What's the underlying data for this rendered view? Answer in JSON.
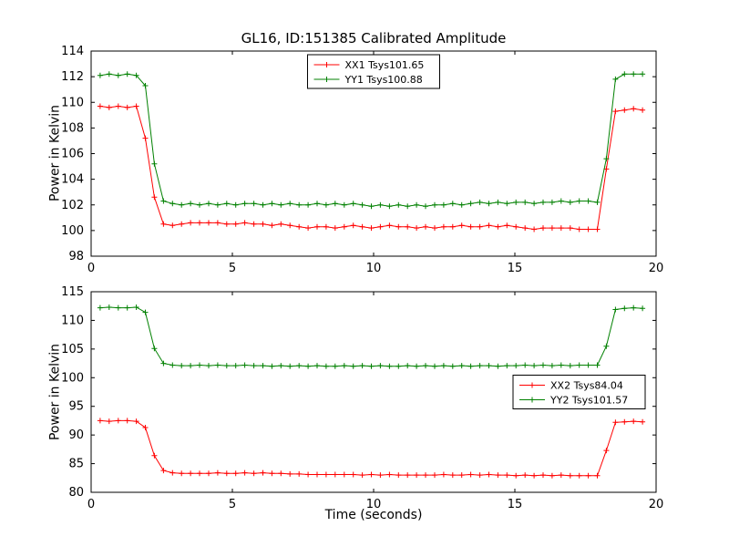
{
  "figure": {
    "title": "GL16, ID:151385 Calibrated Amplitude",
    "xlabel": "Time (seconds)",
    "ylabel": "Power in Kelvin",
    "background": "#ffffff",
    "axis_color": "#000000"
  },
  "chart_data": [
    {
      "type": "line",
      "title": "GL16, ID:151385 Calibrated Amplitude",
      "xlabel": "",
      "ylabel": "Power in Kelvin",
      "xlim": [
        0,
        20
      ],
      "ylim": [
        98,
        114
      ],
      "xticks": [
        0,
        5,
        10,
        15,
        20
      ],
      "yticks": [
        98,
        100,
        102,
        104,
        106,
        108,
        110,
        112,
        114
      ],
      "grid": false,
      "legend_position": "upper center",
      "marker": "plus",
      "x": [
        0.32,
        0.64,
        0.96,
        1.28,
        1.6,
        1.92,
        2.24,
        2.56,
        2.88,
        3.2,
        3.52,
        3.84,
        4.16,
        4.48,
        4.8,
        5.12,
        5.44,
        5.76,
        6.08,
        6.4,
        6.72,
        7.04,
        7.36,
        7.68,
        8.0,
        8.32,
        8.64,
        8.96,
        9.28,
        9.6,
        9.92,
        10.24,
        10.56,
        10.88,
        11.2,
        11.52,
        11.84,
        12.16,
        12.48,
        12.8,
        13.12,
        13.44,
        13.76,
        14.08,
        14.4,
        14.72,
        15.04,
        15.36,
        15.68,
        16.0,
        16.32,
        16.64,
        16.96,
        17.28,
        17.6,
        17.92,
        18.24,
        18.56,
        18.88,
        19.2,
        19.52
      ],
      "series": [
        {
          "name": "XX1 Tsys101.65",
          "color": "#ff0000",
          "values": [
            109.7,
            109.6,
            109.7,
            109.6,
            109.7,
            107.2,
            102.6,
            100.5,
            100.4,
            100.5,
            100.6,
            100.6,
            100.6,
            100.6,
            100.5,
            100.5,
            100.6,
            100.5,
            100.5,
            100.4,
            100.5,
            100.4,
            100.3,
            100.2,
            100.3,
            100.3,
            100.2,
            100.3,
            100.4,
            100.3,
            100.2,
            100.3,
            100.4,
            100.3,
            100.3,
            100.2,
            100.3,
            100.2,
            100.3,
            100.3,
            100.4,
            100.3,
            100.3,
            100.4,
            100.3,
            100.4,
            100.3,
            100.2,
            100.1,
            100.2,
            100.2,
            100.2,
            100.2,
            100.1,
            100.1,
            100.1,
            104.8,
            109.3,
            109.4,
            109.5,
            109.4
          ]
        },
        {
          "name": "YY1 Tsys100.88",
          "color": "#008000",
          "values": [
            112.1,
            112.2,
            112.1,
            112.2,
            112.1,
            111.3,
            105.2,
            102.3,
            102.1,
            102.0,
            102.1,
            102.0,
            102.1,
            102.0,
            102.1,
            102.0,
            102.1,
            102.1,
            102.0,
            102.1,
            102.0,
            102.1,
            102.0,
            102.0,
            102.1,
            102.0,
            102.1,
            102.0,
            102.1,
            102.0,
            101.9,
            102.0,
            101.9,
            102.0,
            101.9,
            102.0,
            101.9,
            102.0,
            102.0,
            102.1,
            102.0,
            102.1,
            102.2,
            102.1,
            102.2,
            102.1,
            102.2,
            102.2,
            102.1,
            102.2,
            102.2,
            102.3,
            102.2,
            102.3,
            102.3,
            102.2,
            105.6,
            111.8,
            112.2,
            112.2,
            112.2
          ]
        }
      ]
    },
    {
      "type": "line",
      "title": "",
      "xlabel": "Time (seconds)",
      "ylabel": "Power in Kelvin",
      "xlim": [
        0,
        20
      ],
      "ylim": [
        80,
        115
      ],
      "xticks": [
        0,
        5,
        10,
        15,
        20
      ],
      "yticks": [
        80,
        85,
        90,
        95,
        100,
        105,
        110,
        115
      ],
      "grid": false,
      "legend_position": "center right",
      "marker": "plus",
      "x": [
        0.32,
        0.64,
        0.96,
        1.28,
        1.6,
        1.92,
        2.24,
        2.56,
        2.88,
        3.2,
        3.52,
        3.84,
        4.16,
        4.48,
        4.8,
        5.12,
        5.44,
        5.76,
        6.08,
        6.4,
        6.72,
        7.04,
        7.36,
        7.68,
        8.0,
        8.32,
        8.64,
        8.96,
        9.28,
        9.6,
        9.92,
        10.24,
        10.56,
        10.88,
        11.2,
        11.52,
        11.84,
        12.16,
        12.48,
        12.8,
        13.12,
        13.44,
        13.76,
        14.08,
        14.4,
        14.72,
        15.04,
        15.36,
        15.68,
        16.0,
        16.32,
        16.64,
        16.96,
        17.28,
        17.6,
        17.92,
        18.24,
        18.56,
        18.88,
        19.2,
        19.52
      ],
      "series": [
        {
          "name": "XX2 Tsys84.04",
          "color": "#ff0000",
          "values": [
            92.5,
            92.4,
            92.5,
            92.5,
            92.4,
            91.3,
            86.4,
            83.8,
            83.4,
            83.3,
            83.3,
            83.3,
            83.3,
            83.4,
            83.3,
            83.3,
            83.4,
            83.3,
            83.4,
            83.3,
            83.3,
            83.2,
            83.2,
            83.1,
            83.1,
            83.1,
            83.1,
            83.1,
            83.1,
            83.0,
            83.1,
            83.0,
            83.1,
            83.0,
            83.0,
            83.0,
            83.0,
            83.0,
            83.1,
            83.0,
            83.0,
            83.1,
            83.0,
            83.1,
            83.0,
            83.0,
            82.9,
            83.0,
            82.9,
            83.0,
            82.9,
            83.0,
            82.9,
            82.9,
            82.9,
            82.9,
            87.3,
            92.2,
            92.3,
            92.4,
            92.3
          ]
        },
        {
          "name": "YY2 Tsys101.57",
          "color": "#008000",
          "values": [
            112.2,
            112.3,
            112.2,
            112.2,
            112.3,
            111.4,
            105.1,
            102.5,
            102.2,
            102.1,
            102.1,
            102.2,
            102.1,
            102.2,
            102.1,
            102.1,
            102.2,
            102.1,
            102.1,
            102.0,
            102.1,
            102.0,
            102.1,
            102.0,
            102.1,
            102.0,
            102.0,
            102.1,
            102.0,
            102.1,
            102.0,
            102.1,
            102.0,
            102.0,
            102.1,
            102.0,
            102.1,
            102.0,
            102.1,
            102.0,
            102.1,
            102.0,
            102.1,
            102.1,
            102.0,
            102.1,
            102.1,
            102.2,
            102.1,
            102.2,
            102.1,
            102.2,
            102.1,
            102.2,
            102.2,
            102.2,
            105.5,
            111.9,
            112.1,
            112.2,
            112.1
          ]
        }
      ]
    }
  ]
}
